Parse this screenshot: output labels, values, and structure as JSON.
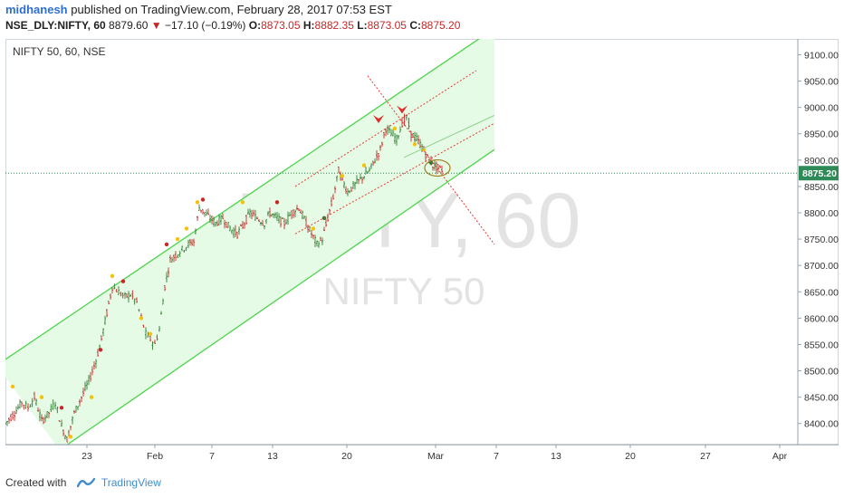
{
  "header": {
    "author": "midhanesh",
    "published_text": "published on TradingView.com, February 28, 2017 07:53 EST",
    "symbol": "NSE_DLY:NIFTY, 60",
    "last_price": "8879.60",
    "change_arrow": "▼",
    "change": "−17.10 (−0.19%)",
    "o_label": "O:",
    "o_value": "8873.05",
    "h_label": "H:",
    "h_value": "8882.35",
    "l_label": "L:",
    "l_value": "8873.05",
    "c_label": "C:",
    "c_value": "8875.20"
  },
  "footer": {
    "created_with": "Created with",
    "brand": "TradingView"
  },
  "colors": {
    "up": "#2e7d32",
    "down": "#c62828",
    "channel_fill": "#e6fbe6",
    "channel_line": "#4cd44c",
    "trend_dotted": "#e53935",
    "price_line": "#2e8b57",
    "price_badge": "#2e8b57"
  },
  "chart_data": {
    "type": "candlestick",
    "legend_title": "NIFTY 50, 60, NSE",
    "watermark_symbol": "NIFTY, 60",
    "watermark_name": "NIFTY 50",
    "ylim": [
      8360,
      9130
    ],
    "y_ticks": [
      "9100.00",
      "9050.00",
      "9000.00",
      "8950.00",
      "8900.00",
      "8850.00",
      "8800.00",
      "8750.00",
      "8700.00",
      "8650.00",
      "8600.00",
      "8550.00",
      "8500.00",
      "8450.00",
      "8400.00"
    ],
    "x_ticks": [
      "23",
      "Feb",
      "7",
      "13",
      "20",
      "Mar",
      "7",
      "13",
      "20",
      "27",
      "Apr"
    ],
    "current_price_label": "8875.20",
    "current_price": 8875.2,
    "series": [
      {
        "name": "price",
        "points": [
          [
            0,
            8400
          ],
          [
            10,
            8420
          ],
          [
            18,
            8440
          ],
          [
            25,
            8430
          ],
          [
            32,
            8450
          ],
          [
            40,
            8405
          ],
          [
            48,
            8420
          ],
          [
            55,
            8440
          ],
          [
            62,
            8395
          ],
          [
            68,
            8370
          ],
          [
            76,
            8420
          ],
          [
            84,
            8450
          ],
          [
            92,
            8480
          ],
          [
            100,
            8520
          ],
          [
            106,
            8560
          ],
          [
            112,
            8610
          ],
          [
            118,
            8660
          ],
          [
            125,
            8650
          ],
          [
            132,
            8640
          ],
          [
            138,
            8645
          ],
          [
            145,
            8630
          ],
          [
            150,
            8600
          ],
          [
            155,
            8570
          ],
          [
            160,
            8560
          ],
          [
            165,
            8550
          ],
          [
            170,
            8580
          ],
          [
            176,
            8660
          ],
          [
            182,
            8710
          ],
          [
            188,
            8720
          ],
          [
            195,
            8730
          ],
          [
            202,
            8740
          ],
          [
            208,
            8745
          ],
          [
            214,
            8810
          ],
          [
            220,
            8800
          ],
          [
            226,
            8790
          ],
          [
            232,
            8780
          ],
          [
            240,
            8790
          ],
          [
            248,
            8770
          ],
          [
            256,
            8760
          ],
          [
            262,
            8775
          ],
          [
            270,
            8800
          ],
          [
            278,
            8790
          ],
          [
            286,
            8780
          ],
          [
            292,
            8800
          ],
          [
            300,
            8790
          ],
          [
            308,
            8780
          ],
          [
            316,
            8800
          ],
          [
            324,
            8810
          ],
          [
            332,
            8780
          ],
          [
            338,
            8760
          ],
          [
            344,
            8740
          ],
          [
            350,
            8750
          ],
          [
            356,
            8790
          ],
          [
            362,
            8830
          ],
          [
            368,
            8880
          ],
          [
            372,
            8860
          ],
          [
            378,
            8840
          ],
          [
            384,
            8850
          ],
          [
            390,
            8860
          ],
          [
            396,
            8870
          ],
          [
            402,
            8880
          ],
          [
            408,
            8900
          ],
          [
            414,
            8920
          ],
          [
            420,
            8960
          ],
          [
            426,
            8950
          ],
          [
            432,
            8940
          ],
          [
            438,
            8970
          ],
          [
            443,
            8980
          ],
          [
            448,
            8950
          ],
          [
            454,
            8940
          ],
          [
            460,
            8925
          ],
          [
            466,
            8905
          ],
          [
            472,
            8890
          ],
          [
            478,
            8885
          ],
          [
            484,
            8879.6
          ]
        ]
      }
    ],
    "annotations": {
      "channel": {
        "upper": [
          [
            -10,
            8510
          ],
          [
            540,
            9150
          ]
        ],
        "lower": [
          [
            60,
            8350
          ],
          [
            540,
            8920
          ]
        ]
      },
      "inner_trend": {
        "upper": [
          [
            320,
            8850
          ],
          [
            520,
            9070
          ]
        ],
        "lower": [
          [
            320,
            8760
          ],
          [
            540,
            8970
          ]
        ]
      },
      "down_line": [
        [
          400,
          9060
        ],
        [
          540,
          8740
        ]
      ],
      "down_arrows": [
        [
          412,
          8965
        ],
        [
          438,
          8983
        ]
      ],
      "ellipse_center": [
        477,
        8885
      ]
    }
  }
}
